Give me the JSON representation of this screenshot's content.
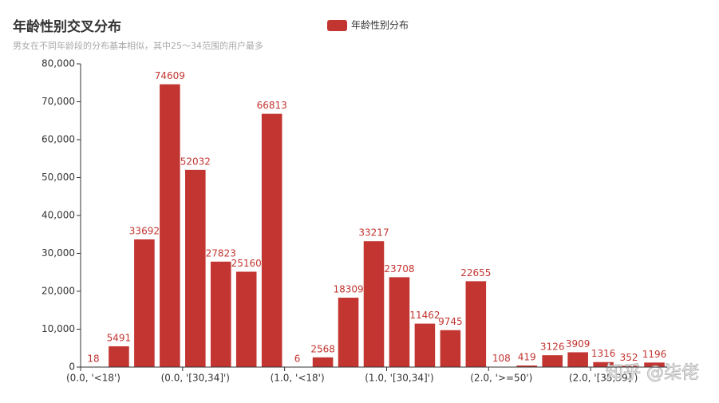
{
  "chart_data": {
    "type": "bar",
    "title": "年龄性别交叉分布",
    "subtitle": "男女在不同年龄段的分布基本相似，其中25～34范围的用户最多",
    "legend": "年龄性别分布",
    "watermark": "知乎 @柒佬",
    "color": "#c23531",
    "categories": [
      "(0.0, '<18')",
      null,
      null,
      null,
      "(0.0, '[30,34]')",
      null,
      null,
      null,
      "(1.0, '<18')",
      null,
      null,
      null,
      "(1.0, '[30,34]')",
      null,
      null,
      null,
      "(2.0, '>=50')",
      null,
      null,
      null,
      "(2.0, '[35,39]')",
      null,
      null
    ],
    "values": [
      18,
      5491,
      33692,
      74609,
      52032,
      27823,
      25160,
      66813,
      6,
      2568,
      18309,
      33217,
      23708,
      11462,
      9745,
      22655,
      108,
      419,
      3126,
      3909,
      1316,
      352,
      1196
    ],
    "ylim": [
      0,
      80000
    ],
    "yticks": [
      0,
      {
        "value": 10000,
        "label": "10,000"
      },
      {
        "value": 20000,
        "label": "20,000"
      },
      {
        "value": 30000,
        "label": "30,000"
      },
      {
        "value": 40000,
        "label": "40,000"
      },
      {
        "value": 50000,
        "label": "50,000"
      },
      {
        "value": 60000,
        "label": "60,000"
      },
      {
        "value": 70000,
        "label": "70,000"
      },
      {
        "value": 80000,
        "label": "80,000"
      }
    ]
  }
}
